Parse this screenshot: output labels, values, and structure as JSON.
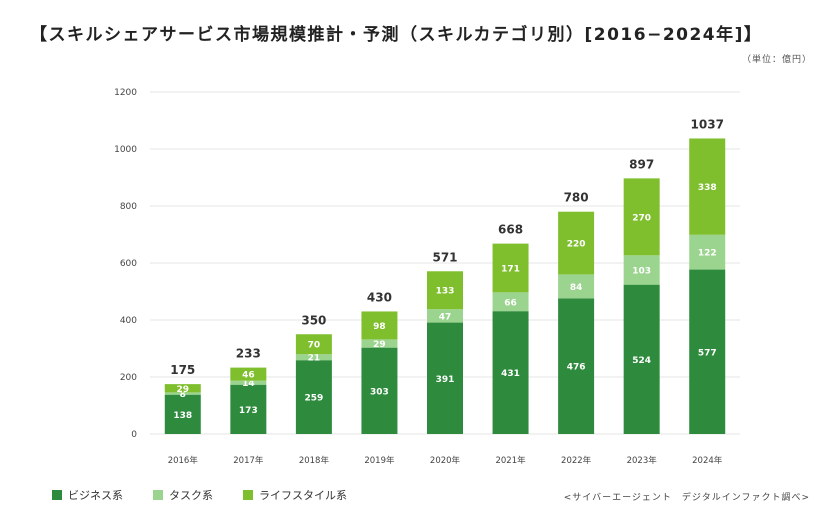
{
  "title": "【スキルシェアサービス市場規模推計・予測（スキルカテゴリ別）[2016−2024年]】",
  "unit_note": "（単位：億円）",
  "source": "<サイバーエージェント　デジタルインファクト調べ>",
  "colors": {
    "business": "#2e8b3e",
    "task": "#9bd48f",
    "lifestyle": "#7fbf2e"
  },
  "legend": [
    {
      "label": "ビジネス系",
      "color": "#2e8b3e"
    },
    {
      "label": "タスク系",
      "color": "#9bd48f"
    },
    {
      "label": "ライフスタイル系",
      "color": "#7fbf2e"
    }
  ],
  "chart_data": {
    "type": "bar",
    "stacked": true,
    "categories": [
      "2016年",
      "2017年",
      "2018年",
      "2019年",
      "2020年",
      "2021年",
      "2022年",
      "2023年",
      "2024年"
    ],
    "series": [
      {
        "name": "ビジネス系",
        "values": [
          138,
          173,
          259,
          303,
          391,
          431,
          476,
          524,
          577
        ]
      },
      {
        "name": "タスク系",
        "values": [
          8,
          14,
          21,
          29,
          47,
          66,
          84,
          103,
          122
        ]
      },
      {
        "name": "ライフスタイル系",
        "values": [
          29,
          46,
          70,
          98,
          133,
          171,
          220,
          270,
          338
        ]
      }
    ],
    "value_labels": [
      [
        "138",
        "173",
        "259",
        "303",
        "391",
        "431",
        "476",
        "524",
        "577"
      ],
      [
        "8",
        "14",
        "21",
        "29",
        "47",
        "66",
        "84",
        "103",
        "122"
      ],
      [
        "29",
        "46",
        "70",
        "98",
        "133",
        "171",
        "220",
        "270",
        "338"
      ]
    ],
    "totals": [
      175,
      233,
      350,
      430,
      571,
      668,
      780,
      897,
      1037
    ],
    "yticks": [
      0,
      200,
      400,
      600,
      800,
      1000,
      1200
    ],
    "ylim": [
      0,
      1200
    ],
    "grid": true,
    "legend_position": "bottom-left"
  }
}
